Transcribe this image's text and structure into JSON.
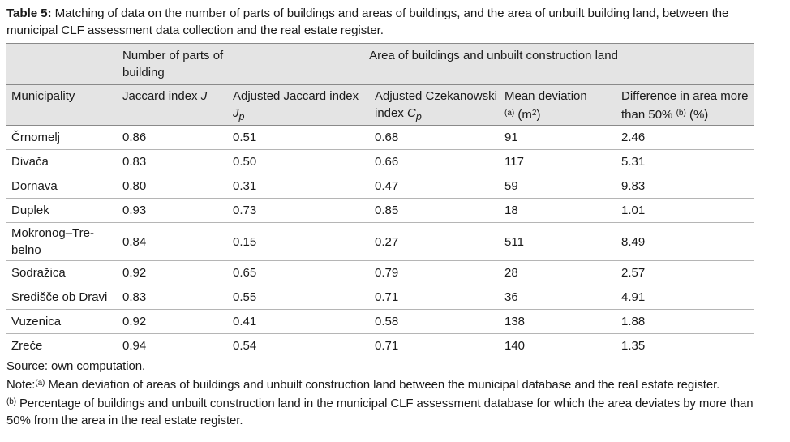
{
  "caption": {
    "label": "Table 5:",
    "text": "Matching of data on the number of parts of buildings and areas of buildings, and the area of unbuilt building land, between the municipal CLF assessment data collection and the real estate register."
  },
  "header": {
    "group_parts": "Number of parts of building",
    "group_area": "Area of buildings and unbuilt construction land",
    "col_municipality": "Municipality",
    "col_jaccard": "Jaccard index",
    "col_jaccard_sym": "J",
    "col_adj_jaccard": "Adjusted Jaccard index",
    "col_adj_jaccard_sym": "J",
    "col_adj_jaccard_sub": "p",
    "col_czek_1": "Adjusted Czekanowski",
    "col_czek_2": "index",
    "col_czek_sym": "C",
    "col_czek_sub": "p",
    "col_mean_1": "Mean deviation",
    "col_mean_note": "(a)",
    "col_mean_unit": "(m",
    "col_mean_unit_sup": "2",
    "col_mean_unit_close": ")",
    "col_diff_1": "Difference in area more",
    "col_diff_2": "than 50%",
    "col_diff_note": "(b)",
    "col_diff_unit": "(%)"
  },
  "rows": [
    {
      "municipality": "Črnomelj",
      "jaccard": "0.86",
      "adj_jaccard": "0.51",
      "czek": "0.68",
      "mean": "91",
      "diff": "2.46"
    },
    {
      "municipality": "Divača",
      "jaccard": "0.83",
      "adj_jaccard": "0.50",
      "czek": "0.66",
      "mean": "117",
      "diff": "5.31"
    },
    {
      "municipality": "Dornava",
      "jaccard": "0.80",
      "adj_jaccard": "0.31",
      "czek": "0.47",
      "mean": "59",
      "diff": "9.83"
    },
    {
      "municipality": "Duplek",
      "jaccard": "0.93",
      "adj_jaccard": "0.73",
      "czek": "0.85",
      "mean": "18",
      "diff": "1.01"
    },
    {
      "municipality": "Mokronog–Tre-belno",
      "jaccard": "0.84",
      "adj_jaccard": "0.15",
      "czek": "0.27",
      "mean": "511",
      "diff": "8.49"
    },
    {
      "municipality": "Sodražica",
      "jaccard": "0.92",
      "adj_jaccard": "0.65",
      "czek": "0.79",
      "mean": "28",
      "diff": "2.57"
    },
    {
      "municipality": "Središče ob Dravi",
      "jaccard": "0.83",
      "adj_jaccard": "0.55",
      "czek": "0.71",
      "mean": "36",
      "diff": "4.91"
    },
    {
      "municipality": "Vuzenica",
      "jaccard": "0.92",
      "adj_jaccard": "0.41",
      "czek": "0.58",
      "mean": "138",
      "diff": "1.88"
    },
    {
      "municipality": "Zreče",
      "jaccard": "0.94",
      "adj_jaccard": "0.54",
      "czek": "0.71",
      "mean": "140",
      "diff": "1.35"
    }
  ],
  "notes": {
    "source": "Source: own computation.",
    "note_label": "Note:",
    "note_a_marker": "(a)",
    "note_a": "Mean deviation of areas of buildings and unbuilt construction land between the municipal database and the real estate register.",
    "note_b_marker": "(b)",
    "note_b": "Percentage of buildings and unbuilt construction land in the municipal CLF assessment database for which the area deviates by more than 50% from the area in the real estate register."
  }
}
